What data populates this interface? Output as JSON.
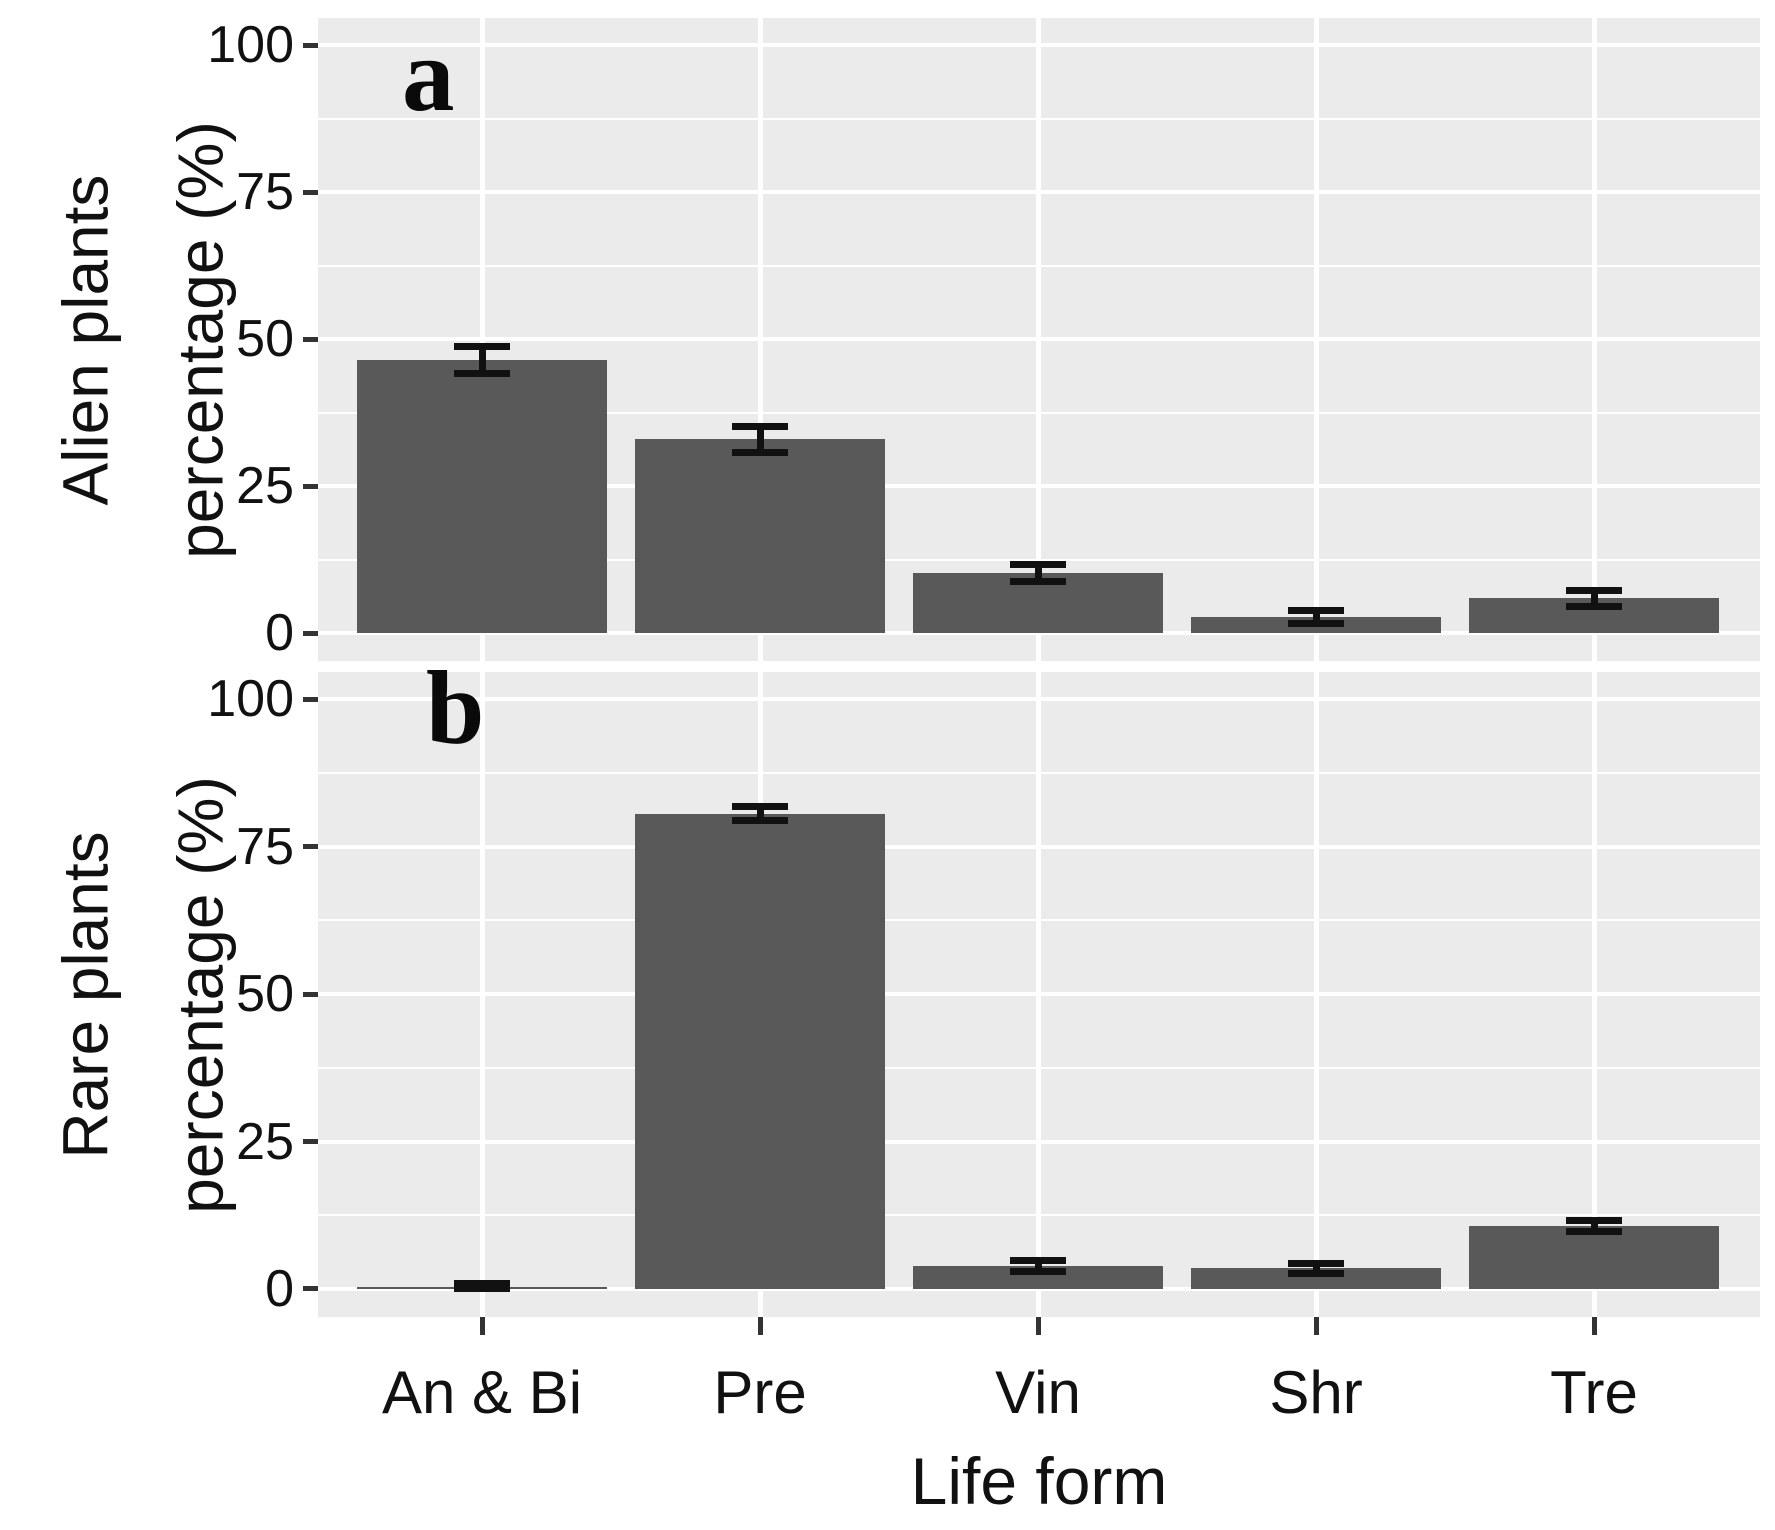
{
  "figure": {
    "x_axis_title": "Life form",
    "categories": [
      "An & Bi",
      "Pre",
      "Vin",
      "Shr",
      "Tre"
    ],
    "y_tick_values": [
      0,
      25,
      50,
      75,
      100
    ],
    "colors": {
      "bar_fill": "#595959",
      "panel_background": "#ebebeb",
      "gridline": "#ffffff",
      "error_bar": "#111111",
      "text": "#111111",
      "tick_mark": "#333333"
    }
  },
  "chart_data": [
    {
      "type": "bar",
      "panel_label": "a",
      "ylabel_line1": "Alien plants",
      "ylabel_line2": "percentage (%)",
      "xlabel": "Life form",
      "categories": [
        "An & Bi",
        "Pre",
        "Vin",
        "Shr",
        "Tre"
      ],
      "values": [
        46.5,
        33.0,
        10.2,
        2.8,
        5.9
      ],
      "error_plus_minus": [
        2.3,
        2.2,
        1.5,
        1.1,
        1.3
      ],
      "ylim": [
        0,
        100
      ],
      "y_ticks": [
        0,
        25,
        50,
        75,
        100
      ],
      "grid": "major-and-minor",
      "legend": "none"
    },
    {
      "type": "bar",
      "panel_label": "b",
      "ylabel_line1": "Rare  plants",
      "ylabel_line2": "percentage (%)",
      "xlabel": "Life form",
      "categories": [
        "An & Bi",
        "Pre",
        "Vin",
        "Shr",
        "Tre"
      ],
      "values": [
        0.4,
        80.6,
        3.9,
        3.5,
        10.7
      ],
      "error_plus_minus": [
        0.5,
        1.2,
        0.9,
        0.8,
        0.9
      ],
      "ylim": [
        0,
        100
      ],
      "y_ticks": [
        0,
        25,
        50,
        75,
        100
      ],
      "grid": "major-and-minor",
      "legend": "none"
    }
  ]
}
